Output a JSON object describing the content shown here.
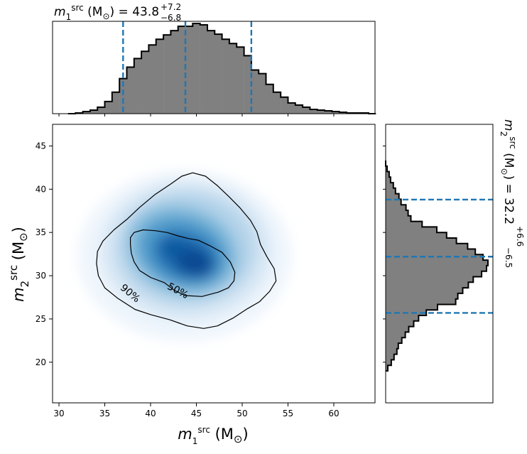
{
  "chart_data": [
    {
      "type": "heatmap",
      "panel": "joint",
      "colormap": "Blues",
      "xlabel": "m1src (M⊙)",
      "ylabel": "m2src (M⊙)",
      "xlim": [
        29.3,
        64.5
      ],
      "ylim": [
        15.3,
        47.5
      ],
      "xticks": [
        30,
        35,
        40,
        45,
        50,
        55,
        60
      ],
      "yticks": [
        20,
        25,
        30,
        35,
        40,
        45
      ],
      "x_tick_labels": [
        "30",
        "35",
        "40",
        "45",
        "50",
        "55",
        "60"
      ],
      "y_tick_labels": [
        "20",
        "25",
        "30",
        "35",
        "40",
        "45"
      ],
      "density_peak": {
        "x": 44.5,
        "y": 32.0
      },
      "contours": [
        {
          "label": "50%",
          "level": 0.5,
          "path": [
            [
              41.5,
              29.2
            ],
            [
              40.0,
              29.8
            ],
            [
              38.8,
              30.6
            ],
            [
              38.2,
              31.6
            ],
            [
              37.9,
              32.6
            ],
            [
              37.8,
              33.6
            ],
            [
              37.8,
              34.4
            ],
            [
              38.2,
              35.0
            ],
            [
              39.2,
              35.3
            ],
            [
              40.5,
              35.2
            ],
            [
              41.8,
              35.0
            ],
            [
              43.0,
              34.6
            ],
            [
              44.1,
              34.3
            ],
            [
              45.2,
              34.1
            ],
            [
              46.4,
              33.5
            ],
            [
              47.8,
              32.7
            ],
            [
              48.7,
              31.6
            ],
            [
              49.2,
              30.4
            ],
            [
              49.1,
              29.4
            ],
            [
              48.5,
              28.6
            ],
            [
              47.4,
              28.1
            ],
            [
              45.6,
              27.6
            ],
            [
              43.8,
              27.7
            ],
            [
              42.6,
              28.3
            ]
          ],
          "label_position": {
            "x": 43.0,
            "y": 28.3
          }
        },
        {
          "label": "90%",
          "level": 0.9,
          "path": [
            [
              38.3,
              26.1
            ],
            [
              36.4,
              27.4
            ],
            [
              35.0,
              28.6
            ],
            [
              34.3,
              30.0
            ],
            [
              34.1,
              31.4
            ],
            [
              34.2,
              32.8
            ],
            [
              34.8,
              34.0
            ],
            [
              36.0,
              35.3
            ],
            [
              37.4,
              36.5
            ],
            [
              38.8,
              37.9
            ],
            [
              40.5,
              39.4
            ],
            [
              42.2,
              40.6
            ],
            [
              43.4,
              41.5
            ],
            [
              44.6,
              41.9
            ],
            [
              46.0,
              41.5
            ],
            [
              47.3,
              40.4
            ],
            [
              48.6,
              39.1
            ],
            [
              49.8,
              37.8
            ],
            [
              50.9,
              36.4
            ],
            [
              51.6,
              35.1
            ],
            [
              52.0,
              33.6
            ],
            [
              52.7,
              32.2
            ],
            [
              53.5,
              30.8
            ],
            [
              53.7,
              29.4
            ],
            [
              53.0,
              28.2
            ],
            [
              51.9,
              27.0
            ],
            [
              50.6,
              26.2
            ],
            [
              49.0,
              25.1
            ],
            [
              47.3,
              24.2
            ],
            [
              45.8,
              23.9
            ],
            [
              44.0,
              24.2
            ],
            [
              42.1,
              24.9
            ],
            [
              40.0,
              25.5
            ]
          ],
          "label_position": {
            "x": 37.8,
            "y": 28.0
          }
        }
      ]
    },
    {
      "type": "histogram",
      "panel": "top-marginal",
      "parameter": "m1src",
      "title_text": "m1src (M⊙) = 43.8",
      "title_value": "43.8",
      "title_plus": "+7.2",
      "title_minus": "−6.8",
      "median": 43.8,
      "lower": 37.0,
      "upper": 51.0,
      "bin_start": 31.0,
      "bin_width": 0.8,
      "values": [
        0,
        1,
        3,
        5,
        9,
        17,
        30,
        49,
        65,
        77,
        87,
        96,
        104,
        110,
        116,
        122,
        122,
        126,
        124,
        116,
        111,
        104,
        98,
        93,
        81,
        61,
        56,
        41,
        30,
        23,
        15,
        12,
        9,
        6,
        5,
        4,
        3,
        2,
        1,
        1,
        1,
        0
      ]
    },
    {
      "type": "histogram",
      "panel": "right-marginal",
      "orientation": "horizontal",
      "parameter": "m2src",
      "title_text": "m2src (M⊙) = 32.2",
      "title_value": "32.2",
      "title_plus": "+6.6",
      "title_minus": "−6.5",
      "median": 32.2,
      "lower": 25.7,
      "upper": 38.8,
      "bin_start": 19.0,
      "bin_width": 0.64,
      "values": [
        3,
        8,
        12,
        16,
        18,
        23,
        28,
        33,
        40,
        47,
        58,
        74,
        100,
        103,
        110,
        118,
        125,
        137,
        144,
        146,
        139,
        128,
        117,
        101,
        87,
        73,
        52,
        36,
        32,
        29,
        22,
        19,
        14,
        11,
        7,
        5,
        2,
        0
      ]
    }
  ]
}
